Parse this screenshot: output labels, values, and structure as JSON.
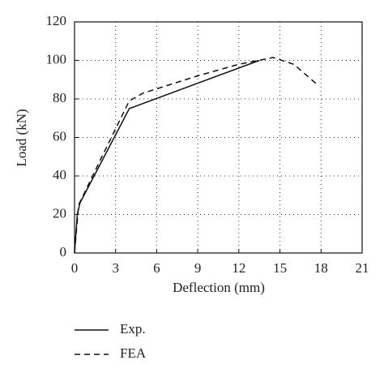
{
  "chart_data": {
    "type": "line",
    "xlabel": "Deflection (mm)",
    "ylabel": "Load (kN)",
    "xlim": [
      0,
      21
    ],
    "xticks": [
      0,
      3,
      6,
      9,
      12,
      15,
      18,
      21
    ],
    "ylim": [
      0,
      120
    ],
    "yticks": [
      0,
      20,
      40,
      60,
      80,
      100,
      120
    ],
    "grid": true,
    "series": [
      {
        "name": "Exp.",
        "color": "#111111",
        "dash": "solid",
        "x": [
          0,
          0.2,
          0.4,
          4,
          13.5
        ],
        "values": [
          0,
          20,
          26,
          75,
          100
        ]
      },
      {
        "name": "FEA",
        "color": "#111111",
        "dash": "dashed",
        "x": [
          0,
          0.3,
          2,
          4,
          5,
          9,
          12,
          14.5,
          16,
          17.8
        ],
        "values": [
          0,
          25,
          50,
          79,
          83,
          92,
          98,
          101.5,
          98,
          87
        ]
      }
    ]
  }
}
